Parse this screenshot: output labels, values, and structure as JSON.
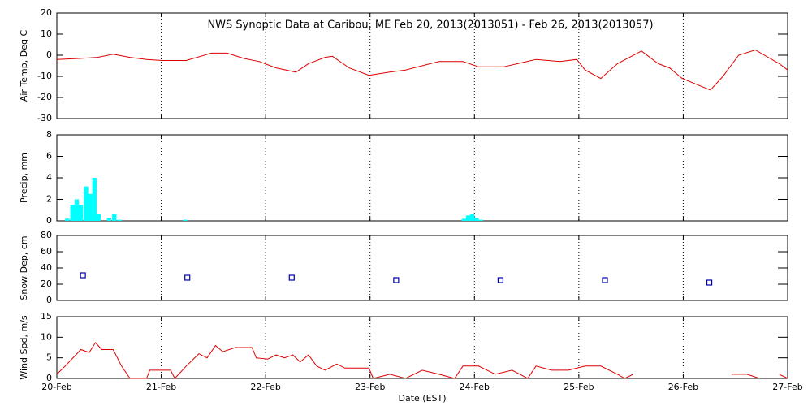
{
  "chart_data": [
    {
      "type": "line",
      "title": "NWS Synoptic Data at Caribou, ME   Feb 20, 2013(2013051) - Feb 26, 2013(2013057)",
      "y_label": "Air Temp, Deg C",
      "xlim": [
        51,
        58
      ],
      "ylim": [
        -30,
        20
      ],
      "yticks": [
        -30,
        -20,
        -10,
        0,
        10,
        20
      ],
      "grid": true,
      "x": [
        51,
        51.23,
        51.39,
        51.54,
        51.7,
        51.86,
        52.01,
        52.24,
        52.48,
        52.63,
        52.79,
        52.94,
        53.1,
        53.29,
        53.41,
        53.57,
        53.64,
        53.8,
        53.99,
        54.19,
        54.34,
        54.66,
        54.89,
        55.04,
        55.28,
        55.59,
        55.82,
        55.98,
        56.06,
        56.21,
        56.37,
        56.6,
        56.76,
        56.87,
        56.99,
        57.26,
        57.38,
        57.53,
        57.69,
        57.92,
        58
      ],
      "series": [
        {
          "color": "#dd0000",
          "values": [
            -2,
            -1.5,
            -1,
            0.5,
            -1,
            -2,
            -2.5,
            -2.5,
            1,
            1,
            -1.5,
            -3,
            -6,
            -8,
            -4,
            -1,
            -0.5,
            -6,
            -9.5,
            -8,
            -7,
            -3,
            -3,
            -5.5,
            -5.5,
            -2,
            -3,
            -2,
            -7,
            -11,
            -4,
            2,
            -4,
            -6,
            -11,
            -16.5,
            -10,
            0,
            2.5,
            -4,
            -7
          ]
        }
      ]
    },
    {
      "type": "bar",
      "y_label": "Precip, mm",
      "xlim": [
        51,
        58
      ],
      "ylim": [
        0,
        8
      ],
      "yticks": [
        0,
        2,
        4,
        6,
        8
      ],
      "grid": true,
      "x": [
        51.1,
        51.15,
        51.19,
        51.23,
        51.28,
        51.32,
        51.36,
        51.4,
        51.5,
        51.55,
        51.6,
        52.23,
        54.9,
        54.94,
        54.98,
        55.02,
        55.06
      ],
      "color": "#00ffff",
      "values": [
        0.2,
        1.5,
        2,
        1.5,
        3.2,
        2.5,
        4,
        0.6,
        0.3,
        0.6,
        0.1,
        0.1,
        0.2,
        0.5,
        0.6,
        0.3,
        0.1
      ]
    },
    {
      "type": "scatter",
      "y_label": "Snow Dep, cm",
      "xlim": [
        51,
        58
      ],
      "ylim": [
        0,
        80
      ],
      "yticks": [
        0,
        20,
        40,
        60,
        80
      ],
      "grid": true,
      "x": [
        51.25,
        52.25,
        53.25,
        54.25,
        55.25,
        56.25,
        57.25
      ],
      "color": "#0000aa",
      "values": [
        31,
        28,
        28,
        25,
        25,
        25,
        22
      ]
    },
    {
      "type": "line",
      "y_label": "Wind Spd, m/s",
      "x_label": "Date (EST)",
      "xlim": [
        51,
        58
      ],
      "ylim": [
        0,
        15
      ],
      "yticks": [
        0,
        5,
        10,
        15
      ],
      "grid": true,
      "xticks": [
        {
          "value": 51,
          "label": "20-Feb"
        },
        {
          "value": 52,
          "label": "21-Feb"
        },
        {
          "value": 53,
          "label": "22-Feb"
        },
        {
          "value": 54,
          "label": "23-Feb"
        },
        {
          "value": 55,
          "label": "24-Feb"
        },
        {
          "value": 56,
          "label": "25-Feb"
        },
        {
          "value": 57,
          "label": "26-Feb"
        },
        {
          "value": 58,
          "label": "27-Feb"
        }
      ],
      "x": [
        51,
        51.08,
        51.23,
        51.31,
        51.37,
        51.43,
        51.54,
        51.62,
        51.7,
        51.86,
        51.89,
        52.01,
        52.09,
        52.13,
        52.24,
        52.36,
        52.44,
        52.52,
        52.59,
        52.71,
        52.79,
        52.87,
        52.91,
        53.02,
        53.1,
        53.18,
        53.26,
        53.33,
        53.41,
        53.49,
        53.57,
        53.68,
        53.76,
        53.88,
        53.99,
        54.03,
        54.19,
        54.34,
        54.5,
        54.66,
        54.81,
        54.89,
        55.04,
        55.2,
        55.36,
        55.51,
        55.59,
        55.74,
        55.9,
        56.06,
        56.21,
        56.37,
        56.44,
        56.52,
        56.9,
        57.46,
        57.61,
        57.73,
        57.8,
        57.92,
        58
      ],
      "series": [
        {
          "color": "#dd0000",
          "values": [
            1,
            3,
            7,
            6.3,
            8.7,
            7,
            7,
            3,
            0,
            0,
            2,
            2,
            2,
            0,
            3,
            6,
            5,
            8,
            6.5,
            7.5,
            7.5,
            7.5,
            5,
            4.7,
            5.7,
            5,
            5.7,
            4,
            5.7,
            3,
            2,
            3.5,
            2.5,
            2.5,
            2.5,
            0,
            1,
            0,
            2,
            1,
            0,
            3,
            3,
            1,
            2,
            0,
            3,
            2,
            2,
            3,
            3,
            1,
            0,
            1,
            null,
            1,
            1,
            0,
            null,
            1,
            0
          ]
        }
      ]
    }
  ]
}
